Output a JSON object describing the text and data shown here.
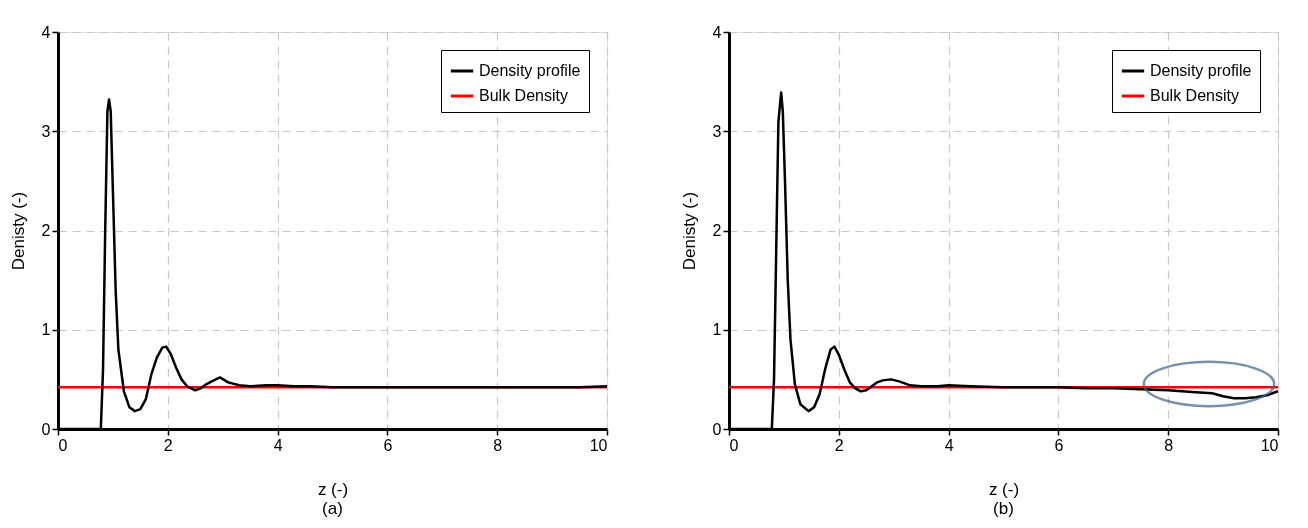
{
  "chart_data": [
    {
      "type": "line",
      "title": "(a)",
      "xlabel": "z (-)",
      "ylabel": "Denisty (-)",
      "xlim": [
        0,
        10
      ],
      "ylim": [
        0,
        4
      ],
      "xticks": [
        0,
        2,
        4,
        6,
        8,
        10
      ],
      "yticks": [
        0,
        1,
        2,
        3,
        4
      ],
      "grid": true,
      "legend": "top right",
      "marker": "none",
      "line_style": "solid",
      "series": [
        {
          "name": "Density profile",
          "color": "#000000",
          "x": [
            0.0,
            0.5,
            0.78,
            0.82,
            0.86,
            0.9,
            0.93,
            0.96,
            1.0,
            1.05,
            1.1,
            1.2,
            1.3,
            1.4,
            1.5,
            1.6,
            1.7,
            1.8,
            1.9,
            1.97,
            2.05,
            2.15,
            2.25,
            2.35,
            2.5,
            2.6,
            2.7,
            2.8,
            2.95,
            3.1,
            3.3,
            3.5,
            3.8,
            4.0,
            4.3,
            4.6,
            5.0,
            5.4,
            5.8,
            6.2,
            6.6,
            7.0,
            7.5,
            8.0,
            8.5,
            9.0,
            9.5,
            10.0
          ],
          "values": [
            0.0,
            0.0,
            0.0,
            0.6,
            2.0,
            3.2,
            3.32,
            3.2,
            2.4,
            1.4,
            0.8,
            0.38,
            0.22,
            0.18,
            0.2,
            0.3,
            0.55,
            0.72,
            0.82,
            0.83,
            0.76,
            0.62,
            0.5,
            0.43,
            0.39,
            0.41,
            0.45,
            0.48,
            0.52,
            0.47,
            0.44,
            0.43,
            0.44,
            0.44,
            0.43,
            0.43,
            0.42,
            0.42,
            0.42,
            0.42,
            0.42,
            0.42,
            0.42,
            0.42,
            0.42,
            0.42,
            0.42,
            0.43
          ]
        }
      ],
      "ref_lines": [
        {
          "axis": "y",
          "value": 0.42,
          "label": "Bulk Density",
          "color": "#ff0000"
        }
      ]
    },
    {
      "type": "line",
      "title": "(b)",
      "xlabel": "z (-)",
      "ylabel": "Denisty (-)",
      "xlim": [
        0,
        10
      ],
      "ylim": [
        0,
        4
      ],
      "xticks": [
        0,
        2,
        4,
        6,
        8,
        10
      ],
      "yticks": [
        0,
        1,
        2,
        3,
        4
      ],
      "grid": true,
      "legend": "top right",
      "marker": "none",
      "line_style": "solid",
      "series": [
        {
          "name": "Density profile",
          "color": "#000000",
          "x": [
            0.0,
            0.5,
            0.78,
            0.82,
            0.86,
            0.9,
            0.95,
            0.98,
            1.02,
            1.07,
            1.12,
            1.2,
            1.3,
            1.45,
            1.55,
            1.65,
            1.75,
            1.85,
            1.92,
            2.0,
            2.1,
            2.2,
            2.3,
            2.4,
            2.5,
            2.6,
            2.7,
            2.8,
            2.95,
            3.1,
            3.3,
            3.5,
            3.8,
            4.0,
            4.4,
            5.0,
            5.5,
            6.0,
            6.5,
            7.0,
            7.5,
            8.0,
            8.5,
            8.8,
            9.0,
            9.2,
            9.4,
            9.6,
            9.8,
            10.0
          ],
          "values": [
            0.0,
            0.0,
            0.0,
            0.5,
            1.8,
            3.1,
            3.39,
            3.2,
            2.5,
            1.5,
            0.9,
            0.45,
            0.25,
            0.18,
            0.22,
            0.35,
            0.6,
            0.8,
            0.83,
            0.75,
            0.6,
            0.47,
            0.41,
            0.38,
            0.39,
            0.43,
            0.47,
            0.49,
            0.5,
            0.48,
            0.44,
            0.43,
            0.43,
            0.44,
            0.43,
            0.42,
            0.42,
            0.42,
            0.41,
            0.41,
            0.4,
            0.39,
            0.37,
            0.36,
            0.33,
            0.31,
            0.31,
            0.32,
            0.34,
            0.38
          ]
        }
      ],
      "ref_lines": [
        {
          "axis": "y",
          "value": 0.42,
          "label": "Bulk Density",
          "color": "#ff0000"
        }
      ]
    }
  ]
}
